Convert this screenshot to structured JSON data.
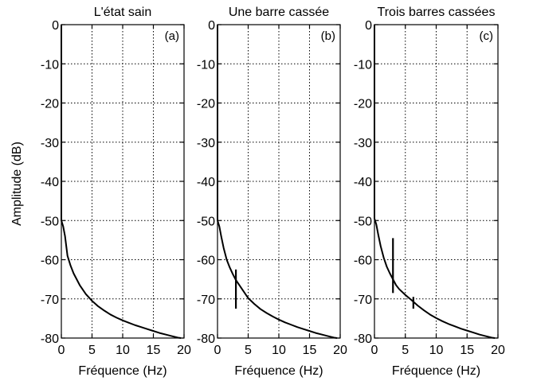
{
  "figure": {
    "ylabel": "Amplitude (dB)"
  },
  "chart_data": [
    {
      "type": "line",
      "title": "L'état sain",
      "tag": "(a)",
      "xlabel": "Fréquence (Hz)",
      "ylabel": "Amplitude (dB)",
      "xlim": [
        0,
        20
      ],
      "ylim": [
        -80,
        0
      ],
      "xticks": [
        0,
        5,
        10,
        15,
        20
      ],
      "yticks": [
        0,
        -10,
        -20,
        -30,
        -40,
        -50,
        -60,
        -70,
        -80
      ],
      "grid": true,
      "series": [
        {
          "x": [
            0,
            0,
            0.1,
            0.3,
            0.6,
            1.0,
            1.5,
            2.0,
            3.0,
            4.0,
            5.0,
            6.0,
            7.0,
            8.0,
            9.0,
            10.0,
            11.0,
            12.0,
            13.0,
            14.0,
            15.0,
            16.0,
            17.0,
            18.0,
            19.0,
            19.5
          ],
          "y": [
            0,
            -50,
            -50.5,
            -51.5,
            -54,
            -59,
            -61.5,
            -63.5,
            -66.5,
            -68.8,
            -70.5,
            -71.9,
            -73,
            -74,
            -74.8,
            -75.5,
            -76.1,
            -76.7,
            -77.2,
            -77.7,
            -78.2,
            -78.7,
            -79.1,
            -79.5,
            -79.9,
            -80
          ]
        }
      ],
      "spikes": []
    },
    {
      "type": "line",
      "title": "Une barre cassée",
      "tag": "(b)",
      "xlabel": "Fréquence (Hz)",
      "ylabel": "",
      "xlim": [
        0,
        20
      ],
      "ylim": [
        -80,
        0
      ],
      "xticks": [
        0,
        5,
        10,
        15,
        20
      ],
      "yticks": [
        0,
        -10,
        -20,
        -30,
        -40,
        -50,
        -60,
        -70,
        -80
      ],
      "grid": true,
      "series": [
        {
          "x": [
            0,
            0,
            0.1,
            0.3,
            0.6,
            1.0,
            1.5,
            2.0,
            2.5,
            3.0,
            4.0,
            5.0,
            6.0,
            7.0,
            8.0,
            9.0,
            10.0,
            11.0,
            12.0,
            13.0,
            14.0,
            15.0,
            16.0,
            17.0,
            18.0,
            19.0,
            19.5
          ],
          "y": [
            0,
            -50,
            -50.5,
            -51.5,
            -54,
            -57,
            -60,
            -62,
            -63.7,
            -65.2,
            -67.5,
            -69.8,
            -71.3,
            -72.6,
            -73.6,
            -74.5,
            -75.3,
            -76,
            -76.6,
            -77.2,
            -77.7,
            -78.2,
            -78.7,
            -79.1,
            -79.5,
            -79.9,
            -80
          ]
        }
      ],
      "spikes": [
        {
          "x": 3.0,
          "y_top": -62.5,
          "y_bottom": -72.5
        }
      ]
    },
    {
      "type": "line",
      "title": "Trois barres cassées",
      "tag": "(c)",
      "xlabel": "Fréquence (Hz)",
      "ylabel": "",
      "xlim": [
        0,
        20
      ],
      "ylim": [
        -80,
        0
      ],
      "xticks": [
        0,
        5,
        10,
        15,
        20
      ],
      "yticks": [
        0,
        -10,
        -20,
        -30,
        -40,
        -50,
        -60,
        -70,
        -80
      ],
      "grid": true,
      "series": [
        {
          "x": [
            0,
            0,
            0.1,
            0.3,
            0.6,
            1.0,
            1.5,
            2.0,
            2.5,
            3.0,
            3.5,
            4.0,
            5.0,
            6.0,
            7.0,
            8.0,
            9.0,
            10.0,
            11.0,
            12.0,
            13.0,
            14.0,
            15.0,
            16.0,
            17.0,
            18.0,
            19.0,
            19.5
          ],
          "y": [
            0,
            -49.5,
            -50,
            -51,
            -53.5,
            -56.5,
            -59.5,
            -61.8,
            -63.5,
            -65,
            -66.5,
            -67.5,
            -69,
            -70.3,
            -71.7,
            -72.9,
            -74,
            -74.9,
            -75.7,
            -76.4,
            -77,
            -77.6,
            -78.1,
            -78.6,
            -79.1,
            -79.5,
            -79.9,
            -80
          ]
        }
      ],
      "spikes": [
        {
          "x": 3.0,
          "y_top": -54.5,
          "y_bottom": -68.5
        },
        {
          "x": 6.3,
          "y_top": -69.5,
          "y_bottom": -72.5
        }
      ]
    }
  ]
}
